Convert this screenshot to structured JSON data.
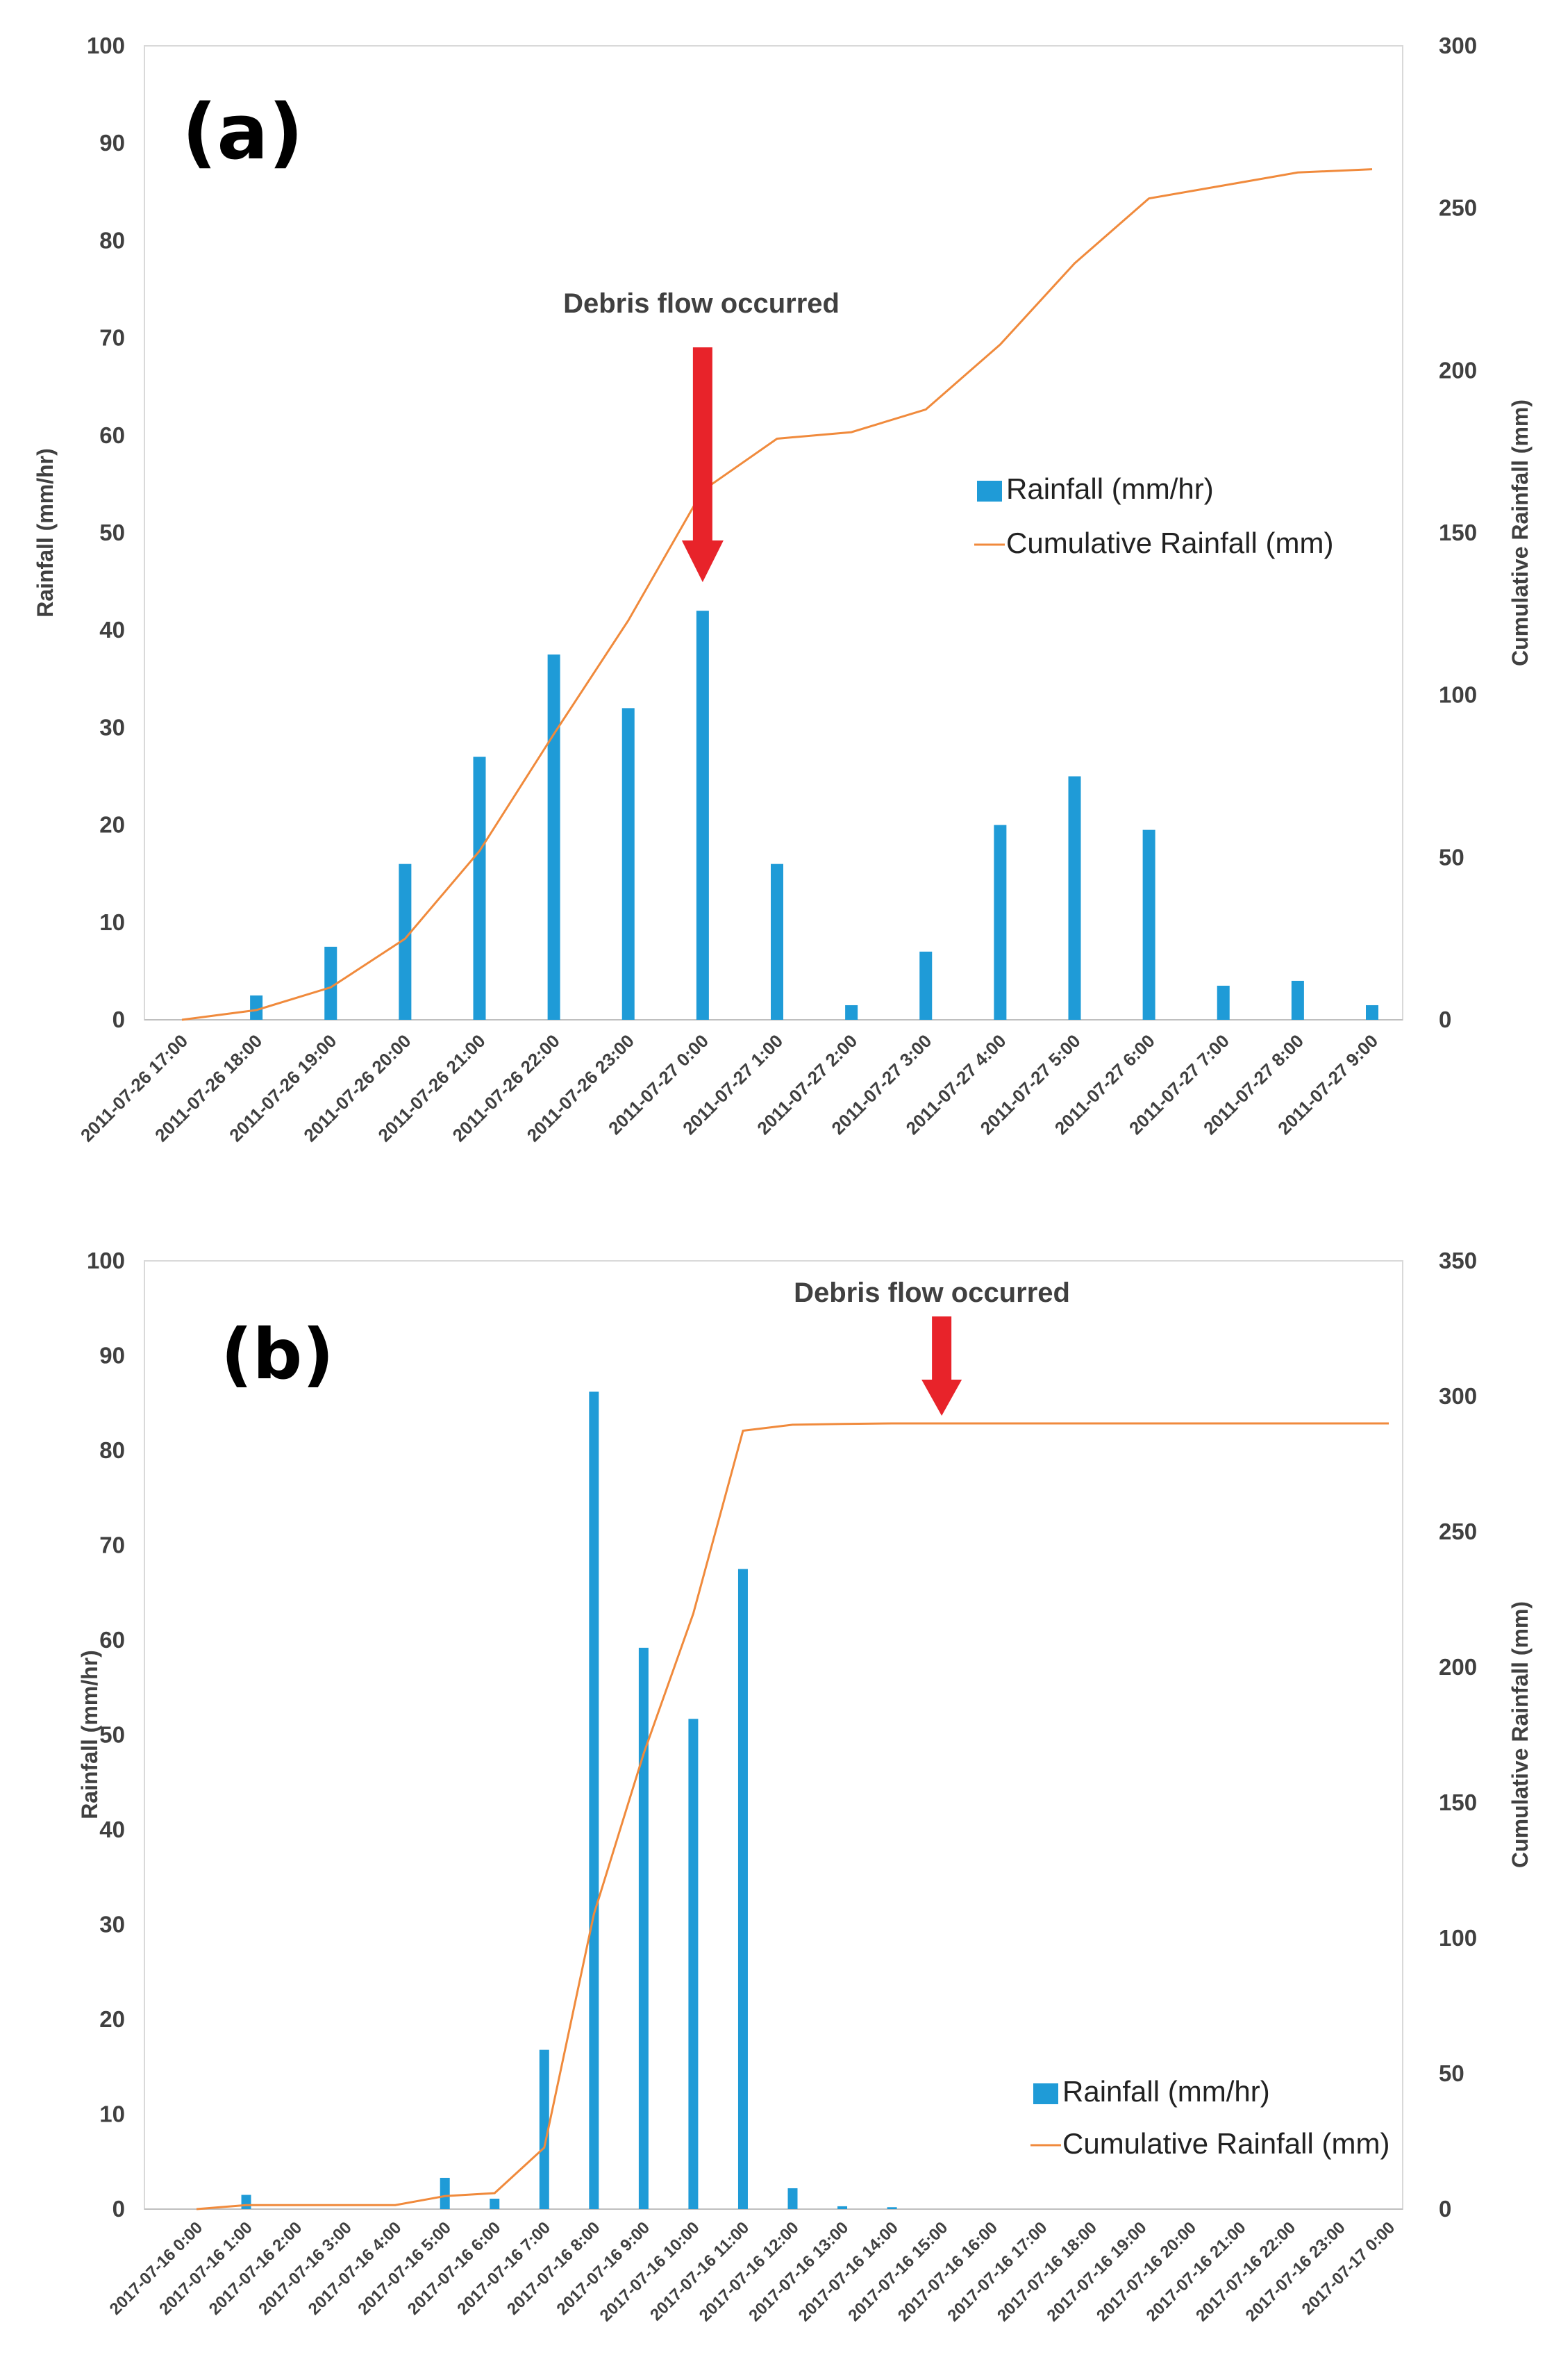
{
  "chart_data": [
    {
      "type": "bar",
      "panel_label": "(a)",
      "annotation": "Debris flow occurred",
      "annotation_category_index": 7,
      "categories": [
        "2011-07-26 17:00",
        "2011-07-26 18:00",
        "2011-07-26 19:00",
        "2011-07-26 20:00",
        "2011-07-26 21:00",
        "2011-07-26 22:00",
        "2011-07-26 23:00",
        "2011-07-27 0:00",
        "2011-07-27 1:00",
        "2011-07-27 2:00",
        "2011-07-27 3:00",
        "2011-07-27 4:00",
        "2011-07-27 5:00",
        "2011-07-27 6:00",
        "2011-07-27 7:00",
        "2011-07-27 8:00",
        "2011-07-27 9:00"
      ],
      "series": [
        {
          "name": "Rainfall (mm/hr)",
          "kind": "bar",
          "axis": "left",
          "color": "#1f9bd7",
          "values": [
            0,
            2.5,
            7.5,
            16,
            27,
            37.5,
            32,
            42,
            16,
            1.5,
            7,
            20,
            25,
            19.5,
            3.5,
            4,
            1.5
          ]
        },
        {
          "name": "Cumulative Rainfall (mm)",
          "kind": "line",
          "axis": "right",
          "color": "#f08a3c",
          "values": [
            0,
            3,
            10,
            25,
            52,
            88,
            123,
            163,
            179,
            181,
            188,
            208,
            233,
            253,
            257,
            261,
            262
          ]
        }
      ],
      "ylabel": "Rainfall (mm/hr)",
      "y2label": "Cumulative Rainfall (mm)",
      "ylim": [
        0,
        100
      ],
      "y2lim": [
        0,
        300
      ],
      "yticks": [
        "0",
        "10",
        "20",
        "30",
        "40",
        "50",
        "60",
        "70",
        "80",
        "90",
        "100"
      ],
      "y2ticks": [
        "0",
        "50",
        "100",
        "150",
        "200",
        "250",
        "300"
      ],
      "legend": [
        "Rainfall (mm/hr)",
        "Cumulative Rainfall (mm)"
      ],
      "legend_position": "center-right",
      "grid": false
    },
    {
      "type": "bar",
      "panel_label": "(b)",
      "annotation": "Debris flow occurred",
      "annotation_category_index": 15,
      "categories": [
        "2017-07-16 0:00",
        "2017-07-16 1:00",
        "2017-07-16 2:00",
        "2017-07-16 3:00",
        "2017-07-16 4:00",
        "2017-07-16 5:00",
        "2017-07-16 6:00",
        "2017-07-16 7:00",
        "2017-07-16 8:00",
        "2017-07-16 9:00",
        "2017-07-16 10:00",
        "2017-07-16 11:00",
        "2017-07-16 12:00",
        "2017-07-16 13:00",
        "2017-07-16 14:00",
        "2017-07-16 15:00",
        "2017-07-16 16:00",
        "2017-07-16 17:00",
        "2017-07-16 18:00",
        "2017-07-16 19:00",
        "2017-07-16 20:00",
        "2017-07-16 21:00",
        "2017-07-16 22:00",
        "2017-07-16 23:00",
        "2017-07-17 0:00"
      ],
      "series": [
        {
          "name": "Rainfall (mm/hr)",
          "kind": "bar",
          "axis": "left",
          "color": "#1f9bd7",
          "values": [
            0,
            1.5,
            0,
            0,
            0,
            3.3,
            1.1,
            16.8,
            86.2,
            59.2,
            51.7,
            67.5,
            2.2,
            0.3,
            0.2,
            0,
            0,
            0,
            0,
            0,
            0,
            0,
            0,
            0,
            0
          ]
        },
        {
          "name": "Cumulative Rainfall (mm)",
          "kind": "line",
          "axis": "right",
          "color": "#f08a3c",
          "values": [
            0,
            1.5,
            1.5,
            1.5,
            1.5,
            4.8,
            5.9,
            22.7,
            108.9,
            168.1,
            219.8,
            287.3,
            289.5,
            289.8,
            290,
            290,
            290,
            290,
            290,
            290,
            290,
            290,
            290,
            290,
            290
          ]
        }
      ],
      "ylabel": "Rainfall (mm/hr)",
      "y2label": "Cumulative Rainfall (mm)",
      "ylim": [
        0,
        100
      ],
      "y2lim": [
        0,
        350
      ],
      "yticks": [
        "0",
        "10",
        "20",
        "30",
        "40",
        "50",
        "60",
        "70",
        "80",
        "90",
        "100"
      ],
      "y2ticks": [
        "0",
        "50",
        "100",
        "150",
        "200",
        "250",
        "300",
        "350"
      ],
      "legend": [
        "Rainfall (mm/hr)",
        "Cumulative Rainfall (mm)"
      ],
      "legend_position": "bottom-right",
      "grid": false
    }
  ]
}
